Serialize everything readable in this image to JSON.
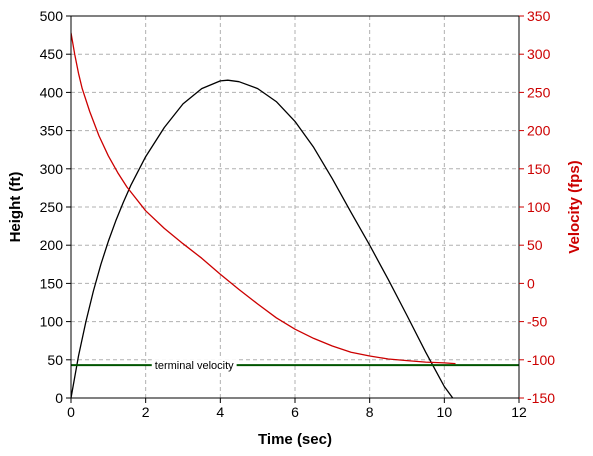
{
  "chart_data": {
    "type": "line",
    "title": "",
    "xlabel": "Time (sec)",
    "ylabel_left": "Height (ft)",
    "ylabel_right": "Velocity (fps)",
    "xlim": [
      0,
      12
    ],
    "ylim_left": [
      0,
      500
    ],
    "ylim_right": [
      -150,
      350
    ],
    "x_ticks": [
      0,
      2,
      4,
      6,
      8,
      10,
      12
    ],
    "y_left_ticks": [
      0,
      50,
      100,
      150,
      200,
      250,
      300,
      350,
      400,
      450,
      500
    ],
    "y_right_ticks": [
      -150,
      -100,
      -50,
      0,
      50,
      100,
      150,
      200,
      250,
      300,
      350
    ],
    "grid": true,
    "colors": {
      "height": "#000000",
      "velocity": "#cc0000",
      "terminal": "#005500",
      "grid": "#b0b0b0",
      "right_axis": "#cc0000"
    },
    "series": [
      {
        "axis": "left",
        "color": "#000000",
        "x": [
          0,
          0.2,
          0.4,
          0.6,
          0.8,
          1.0,
          1.2,
          1.4,
          1.6,
          2.0,
          2.5,
          3.0,
          3.5,
          4.0,
          4.2,
          4.5,
          5.0,
          5.5,
          6.0,
          6.5,
          7.0,
          7.5,
          8.0,
          8.5,
          9.0,
          9.5,
          10.0,
          10.3
        ],
        "y": [
          0,
          55,
          100,
          140,
          175,
          205,
          232,
          256,
          278,
          316,
          354,
          385,
          405,
          415,
          416,
          414,
          405,
          388,
          362,
          328,
          287,
          243,
          200,
          155,
          108,
          60,
          15,
          -5
        ]
      },
      {
        "axis": "right",
        "color": "#cc0000",
        "x": [
          0,
          0.1,
          0.2,
          0.3,
          0.5,
          0.75,
          1.0,
          1.25,
          1.5,
          2.0,
          2.5,
          3.0,
          3.5,
          4.0,
          4.5,
          5.0,
          5.5,
          6.0,
          6.5,
          7.0,
          7.5,
          8.0,
          8.5,
          9.0,
          9.5,
          10.0,
          10.3
        ],
        "y": [
          328,
          300,
          275,
          255,
          225,
          193,
          167,
          145,
          126,
          95,
          72,
          52,
          33,
          12,
          -8,
          -27,
          -45,
          -60,
          -72,
          -82,
          -90,
          -95,
          -99,
          -101,
          -103,
          -104,
          -105
        ]
      },
      {
        "axis": "right",
        "color": "#005500",
        "x": [
          0,
          12
        ],
        "y": [
          -107,
          -107
        ]
      }
    ],
    "annotations": [
      {
        "text": "terminal velocity",
        "x": 3.3,
        "y": -107
      }
    ]
  }
}
